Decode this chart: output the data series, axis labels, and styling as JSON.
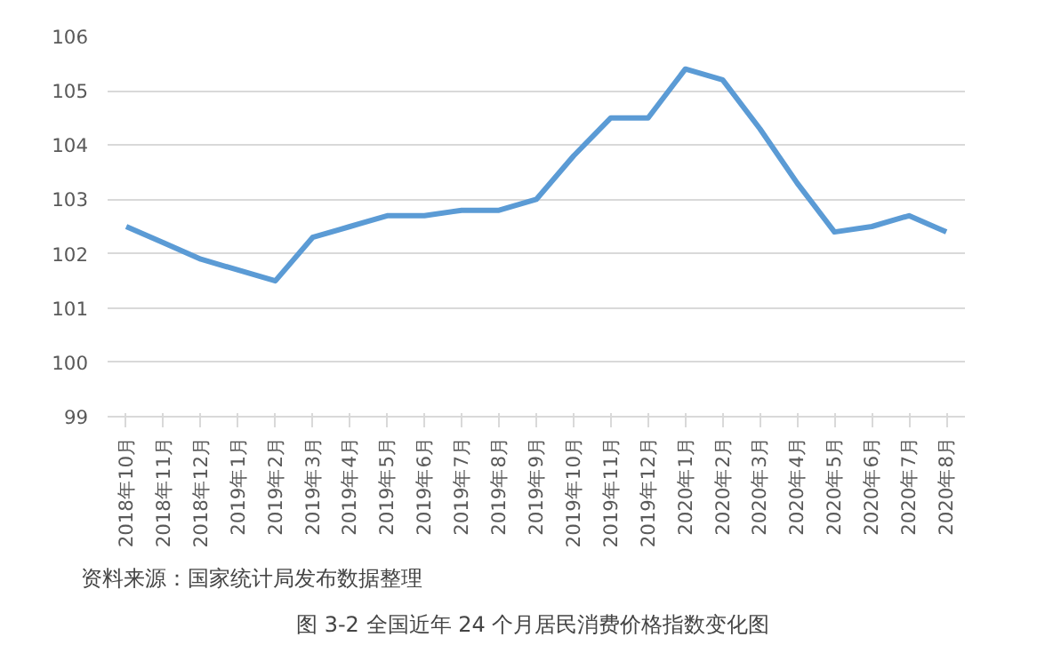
{
  "chart_data": {
    "type": "line",
    "title": "图 3-2  全国近年 24 个月居民消费价格指数变化图",
    "categories": [
      "2018年10月",
      "2018年11月",
      "2018年12月",
      "2019年1月",
      "2019年2月",
      "2019年3月",
      "2019年4月",
      "2019年5月",
      "2019年6月",
      "2019年7月",
      "2019年8月",
      "2019年9月",
      "2019年10月",
      "2019年11月",
      "2019年12月",
      "2020年1月",
      "2020年2月",
      "2020年3月",
      "2020年4月",
      "2020年5月",
      "2020年6月",
      "2020年7月",
      "2020年8月"
    ],
    "series": [
      {
        "color": "#5b9bd5",
        "values": [
          102.5,
          102.2,
          101.9,
          101.7,
          101.5,
          102.3,
          102.5,
          102.7,
          102.7,
          102.8,
          102.8,
          103.0,
          103.8,
          104.5,
          104.5,
          105.4,
          105.2,
          104.3,
          103.3,
          102.4,
          102.5,
          102.7,
          102.4
        ]
      }
    ],
    "ylim": [
      99,
      106
    ],
    "yticks": [
      99,
      100,
      101,
      102,
      103,
      104,
      105,
      106
    ],
    "grid": "y",
    "marker": "none",
    "line_style": "solid",
    "annotations": [
      "资料来源：国家统计局发布数据整理"
    ]
  }
}
